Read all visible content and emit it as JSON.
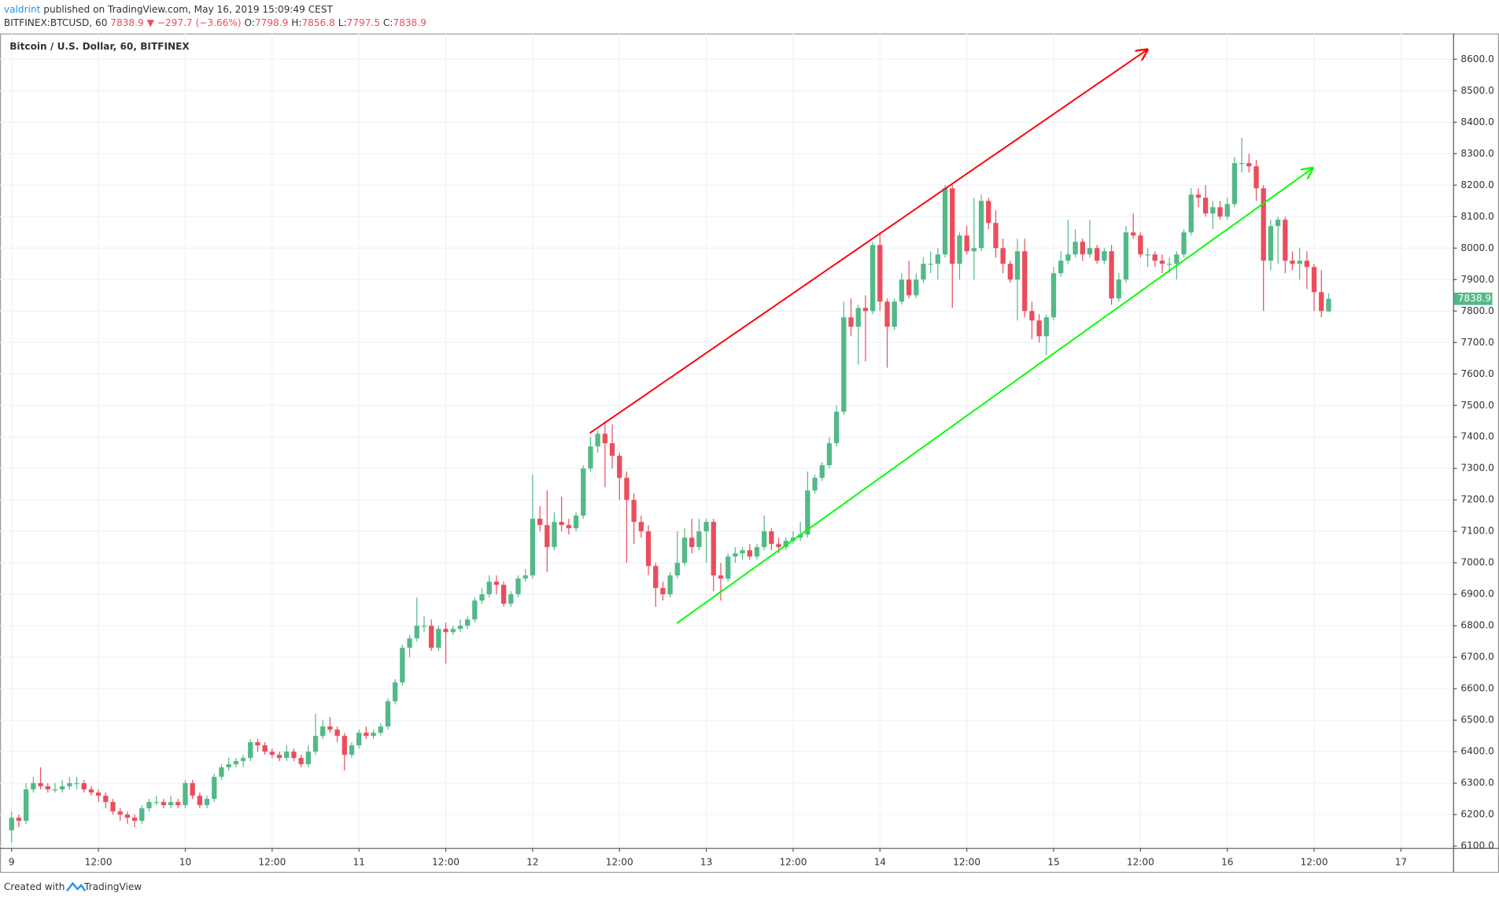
{
  "header": {
    "author": "valdrint",
    "published": "published on TradingView.com, May 16, 2019 15:09:49 CEST",
    "symbol": "BITFINEX:BTCUSD, 60",
    "direction": "▼",
    "change": "−297.7 (−3.66%)",
    "ohlc_labels": [
      "O:",
      "H:",
      "L:",
      "C:"
    ]
  },
  "footer": {
    "created_with": "Created with",
    "brand": "TradingView"
  },
  "chart_data": {
    "type": "candlestick",
    "title": "Bitcoin / U.S. Dollar, 60, BITFINEX",
    "up_color": "#53b987",
    "down_color": "#eb4d5c",
    "grid": true,
    "ylim": [
      6094,
      8682
    ],
    "yticks": [
      {
        "value": 6100,
        "label": "6100.0"
      },
      {
        "value": 6200,
        "label": "6200.0"
      },
      {
        "value": 6300,
        "label": "6300.0"
      },
      {
        "value": 6400,
        "label": "6400.0"
      },
      {
        "value": 6500,
        "label": "6500.0"
      },
      {
        "value": 6600,
        "label": "6600.0"
      },
      {
        "value": 6700,
        "label": "6700.0"
      },
      {
        "value": 6800,
        "label": "6800.0"
      },
      {
        "value": 6900,
        "label": "6900.0"
      },
      {
        "value": 7000,
        "label": "7000.0"
      },
      {
        "value": 7100,
        "label": "7100.0"
      },
      {
        "value": 7200,
        "label": "7200.0"
      },
      {
        "value": 7300,
        "label": "7300.0"
      },
      {
        "value": 7400,
        "label": "7400.0"
      },
      {
        "value": 7500,
        "label": "7500.0"
      },
      {
        "value": 7600,
        "label": "7600.0"
      },
      {
        "value": 7700,
        "label": "7700.0"
      },
      {
        "value": 7800,
        "label": "7800.0"
      },
      {
        "value": 7900,
        "label": "7900.0"
      },
      {
        "value": 8000,
        "label": "8000.0"
      },
      {
        "value": 8100,
        "label": "8100.0"
      },
      {
        "value": 8200,
        "label": "8200.0"
      },
      {
        "value": 8300,
        "label": "8300.0"
      },
      {
        "value": 8400,
        "label": "8400.0"
      },
      {
        "value": 8500,
        "label": "8500.0"
      },
      {
        "value": 8600,
        "label": "8600.0"
      }
    ],
    "xlim": [
      -1.6,
      199.2
    ],
    "xticks": [
      {
        "value": 0,
        "label": "9"
      },
      {
        "value": 12,
        "label": "12:00"
      },
      {
        "value": 24,
        "label": "10"
      },
      {
        "value": 36,
        "label": "12:00"
      },
      {
        "value": 48,
        "label": "11"
      },
      {
        "value": 60,
        "label": "12:00"
      },
      {
        "value": 72,
        "label": "12"
      },
      {
        "value": 84,
        "label": "12:00"
      },
      {
        "value": 96,
        "label": "13"
      },
      {
        "value": 108,
        "label": "12:00"
      },
      {
        "value": 120,
        "label": "14"
      },
      {
        "value": 132,
        "label": "12:00"
      },
      {
        "value": 144,
        "label": "15"
      },
      {
        "value": 156,
        "label": "12:00"
      },
      {
        "value": 168,
        "label": "16"
      },
      {
        "value": 180,
        "label": "12:00"
      },
      {
        "value": 192,
        "label": "17"
      }
    ],
    "candles": [
      [
        6150,
        6210,
        6110,
        6190
      ],
      [
        6190,
        6200,
        6160,
        6180
      ],
      [
        6180,
        6300,
        6170,
        6280
      ],
      [
        6280,
        6320,
        6270,
        6300
      ],
      [
        6300,
        6350,
        6280,
        6290
      ],
      [
        6290,
        6300,
        6270,
        6280
      ],
      [
        6280,
        6300,
        6270,
        6280
      ],
      [
        6280,
        6310,
        6270,
        6290
      ],
      [
        6290,
        6320,
        6280,
        6300
      ],
      [
        6300,
        6320,
        6280,
        6300
      ],
      [
        6300,
        6310,
        6270,
        6280
      ],
      [
        6280,
        6290,
        6260,
        6270
      ],
      [
        6270,
        6280,
        6240,
        6260
      ],
      [
        6260,
        6270,
        6220,
        6240
      ],
      [
        6240,
        6250,
        6200,
        6210
      ],
      [
        6210,
        6220,
        6180,
        6200
      ],
      [
        6200,
        6210,
        6170,
        6190
      ],
      [
        6190,
        6200,
        6160,
        6180
      ],
      [
        6180,
        6230,
        6170,
        6220
      ],
      [
        6220,
        6250,
        6210,
        6240
      ],
      [
        6240,
        6260,
        6230,
        6240
      ],
      [
        6240,
        6250,
        6220,
        6230
      ],
      [
        6230,
        6260,
        6220,
        6240
      ],
      [
        6240,
        6250,
        6220,
        6230
      ],
      [
        6230,
        6310,
        6220,
        6300
      ],
      [
        6300,
        6310,
        6250,
        6260
      ],
      [
        6260,
        6270,
        6220,
        6230
      ],
      [
        6230,
        6260,
        6220,
        6250
      ],
      [
        6250,
        6330,
        6240,
        6320
      ],
      [
        6320,
        6360,
        6310,
        6350
      ],
      [
        6350,
        6380,
        6340,
        6360
      ],
      [
        6360,
        6380,
        6350,
        6370
      ],
      [
        6370,
        6390,
        6350,
        6380
      ],
      [
        6380,
        6440,
        6370,
        6430
      ],
      [
        6430,
        6440,
        6400,
        6420
      ],
      [
        6420,
        6430,
        6390,
        6400
      ],
      [
        6400,
        6410,
        6380,
        6390
      ],
      [
        6390,
        6400,
        6370,
        6380
      ],
      [
        6380,
        6420,
        6370,
        6400
      ],
      [
        6400,
        6410,
        6370,
        6380
      ],
      [
        6380,
        6390,
        6350,
        6360
      ],
      [
        6360,
        6420,
        6350,
        6400
      ],
      [
        6400,
        6520,
        6390,
        6450
      ],
      [
        6450,
        6500,
        6440,
        6480
      ],
      [
        6480,
        6510,
        6460,
        6470
      ],
      [
        6470,
        6480,
        6430,
        6450
      ],
      [
        6450,
        6460,
        6340,
        6390
      ],
      [
        6390,
        6430,
        6380,
        6420
      ],
      [
        6420,
        6470,
        6410,
        6460
      ],
      [
        6460,
        6480,
        6440,
        6450
      ],
      [
        6450,
        6470,
        6440,
        6460
      ],
      [
        6460,
        6490,
        6450,
        6480
      ],
      [
        6480,
        6570,
        6470,
        6560
      ],
      [
        6560,
        6630,
        6550,
        6620
      ],
      [
        6620,
        6740,
        6610,
        6730
      ],
      [
        6730,
        6770,
        6700,
        6760
      ],
      [
        6760,
        6890,
        6750,
        6800
      ],
      [
        6800,
        6830,
        6780,
        6800
      ],
      [
        6800,
        6820,
        6720,
        6730
      ],
      [
        6730,
        6800,
        6720,
        6790
      ],
      [
        6790,
        6810,
        6680,
        6780
      ],
      [
        6780,
        6800,
        6770,
        6790
      ],
      [
        6790,
        6820,
        6780,
        6800
      ],
      [
        6800,
        6830,
        6790,
        6820
      ],
      [
        6820,
        6890,
        6810,
        6880
      ],
      [
        6880,
        6920,
        6870,
        6900
      ],
      [
        6900,
        6960,
        6890,
        6940
      ],
      [
        6940,
        6960,
        6900,
        6930
      ],
      [
        6930,
        6940,
        6860,
        6870
      ],
      [
        6870,
        6910,
        6860,
        6900
      ],
      [
        6900,
        6960,
        6890,
        6950
      ],
      [
        6950,
        6980,
        6940,
        6960
      ],
      [
        6960,
        7280,
        6950,
        7140
      ],
      [
        7140,
        7180,
        7100,
        7120
      ],
      [
        7120,
        7230,
        6970,
        7050
      ],
      [
        7050,
        7160,
        7040,
        7130
      ],
      [
        7130,
        7210,
        7100,
        7120
      ],
      [
        7120,
        7140,
        7090,
        7110
      ],
      [
        7110,
        7160,
        7100,
        7150
      ],
      [
        7150,
        7310,
        7140,
        7300
      ],
      [
        7300,
        7400,
        7290,
        7370
      ],
      [
        7370,
        7420,
        7350,
        7410
      ],
      [
        7410,
        7450,
        7240,
        7380
      ],
      [
        7380,
        7440,
        7300,
        7340
      ],
      [
        7340,
        7350,
        7200,
        7270
      ],
      [
        7270,
        7290,
        7000,
        7200
      ],
      [
        7200,
        7220,
        7060,
        7130
      ],
      [
        7130,
        7150,
        7080,
        7100
      ],
      [
        7100,
        7120,
        6960,
        6990
      ],
      [
        6990,
        7000,
        6860,
        6920
      ],
      [
        6920,
        6940,
        6880,
        6900
      ],
      [
        6900,
        6970,
        6890,
        6960
      ],
      [
        6960,
        7100,
        6950,
        7000
      ],
      [
        7000,
        7110,
        6990,
        7080
      ],
      [
        7080,
        7140,
        7030,
        7050
      ],
      [
        7050,
        7140,
        7040,
        7100
      ],
      [
        7100,
        7140,
        7000,
        7130
      ],
      [
        7130,
        7140,
        6910,
        6960
      ],
      [
        6960,
        7000,
        6880,
        6950
      ],
      [
        6950,
        7030,
        6940,
        7020
      ],
      [
        7020,
        7050,
        7000,
        7030
      ],
      [
        7030,
        7050,
        7010,
        7040
      ],
      [
        7040,
        7060,
        7010,
        7020
      ],
      [
        7020,
        7060,
        7010,
        7050
      ],
      [
        7050,
        7150,
        7040,
        7100
      ],
      [
        7100,
        7110,
        7040,
        7060
      ],
      [
        7060,
        7080,
        7030,
        7050
      ],
      [
        7050,
        7080,
        7040,
        7070
      ],
      [
        7070,
        7100,
        7060,
        7080
      ],
      [
        7080,
        7130,
        7070,
        7090
      ],
      [
        7090,
        7290,
        7080,
        7230
      ],
      [
        7230,
        7280,
        7220,
        7270
      ],
      [
        7270,
        7320,
        7260,
        7310
      ],
      [
        7310,
        7400,
        7300,
        7380
      ],
      [
        7380,
        7500,
        7370,
        7480
      ],
      [
        7480,
        7830,
        7470,
        7780
      ],
      [
        7780,
        7840,
        7720,
        7750
      ],
      [
        7750,
        7820,
        7630,
        7810
      ],
      [
        7810,
        7850,
        7640,
        7800
      ],
      [
        7800,
        8020,
        7790,
        8010
      ],
      [
        8010,
        8050,
        7800,
        7830
      ],
      [
        7830,
        7840,
        7620,
        7750
      ],
      [
        7750,
        7840,
        7740,
        7830
      ],
      [
        7830,
        7920,
        7820,
        7900
      ],
      [
        7900,
        7960,
        7840,
        7850
      ],
      [
        7850,
        7920,
        7840,
        7900
      ],
      [
        7900,
        7970,
        7890,
        7950
      ],
      [
        7950,
        7990,
        7920,
        7950
      ],
      [
        7950,
        8000,
        7900,
        7980
      ],
      [
        7980,
        8200,
        7970,
        8190
      ],
      [
        8190,
        8200,
        7810,
        7950
      ],
      [
        7950,
        8050,
        7900,
        8040
      ],
      [
        8040,
        8070,
        7980,
        7990
      ],
      [
        7990,
        8160,
        7900,
        8000
      ],
      [
        8000,
        8170,
        7990,
        8150
      ],
      [
        8150,
        8160,
        8060,
        8080
      ],
      [
        8080,
        8120,
        7970,
        8000
      ],
      [
        8000,
        8030,
        7920,
        7950
      ],
      [
        7950,
        7960,
        7890,
        7900
      ],
      [
        7900,
        8030,
        7770,
        7990
      ],
      [
        7990,
        8030,
        7780,
        7800
      ],
      [
        7800,
        7830,
        7710,
        7770
      ],
      [
        7770,
        7790,
        7700,
        7720
      ],
      [
        7720,
        7790,
        7660,
        7780
      ],
      [
        7780,
        7940,
        7770,
        7920
      ],
      [
        7920,
        7990,
        7910,
        7960
      ],
      [
        7960,
        8090,
        7950,
        7980
      ],
      [
        7980,
        8060,
        7970,
        8020
      ],
      [
        8020,
        8030,
        7960,
        7980
      ],
      [
        7980,
        8090,
        7970,
        8000
      ],
      [
        8000,
        8010,
        7950,
        7960
      ],
      [
        7960,
        8000,
        7950,
        7990
      ],
      [
        7990,
        8010,
        7820,
        7840
      ],
      [
        7840,
        7920,
        7830,
        7900
      ],
      [
        7900,
        8070,
        7890,
        8050
      ],
      [
        8050,
        8110,
        8030,
        8040
      ],
      [
        8040,
        8050,
        7970,
        7980
      ],
      [
        7980,
        8000,
        7940,
        7980
      ],
      [
        7980,
        7990,
        7940,
        7960
      ],
      [
        7960,
        7980,
        7920,
        7950
      ],
      [
        7950,
        7970,
        7920,
        7950
      ],
      [
        7950,
        7990,
        7900,
        7980
      ],
      [
        7980,
        8060,
        7970,
        8050
      ],
      [
        8050,
        8190,
        8040,
        8170
      ],
      [
        8170,
        8190,
        8130,
        8160
      ],
      [
        8160,
        8200,
        8100,
        8110
      ],
      [
        8110,
        8150,
        8060,
        8130
      ],
      [
        8130,
        8150,
        8090,
        8100
      ],
      [
        8100,
        8160,
        8090,
        8140
      ],
      [
        8140,
        8290,
        8130,
        8270
      ],
      [
        8270,
        8350,
        8240,
        8270
      ],
      [
        8270,
        8300,
        8240,
        8260
      ],
      [
        8260,
        8280,
        8150,
        8190
      ],
      [
        8190,
        8200,
        7800,
        7960
      ],
      [
        7960,
        8090,
        7930,
        8070
      ],
      [
        8070,
        8100,
        7950,
        8090
      ],
      [
        8090,
        8100,
        7920,
        7960
      ],
      [
        7960,
        7990,
        7930,
        7950
      ],
      [
        7950,
        8000,
        7900,
        7960
      ],
      [
        7960,
        7990,
        7870,
        7940
      ],
      [
        7940,
        7950,
        7800,
        7860
      ],
      [
        7860,
        7930,
        7780,
        7800
      ],
      [
        7798.9,
        7856.8,
        7797.5,
        7838.9
      ]
    ]
  }
}
